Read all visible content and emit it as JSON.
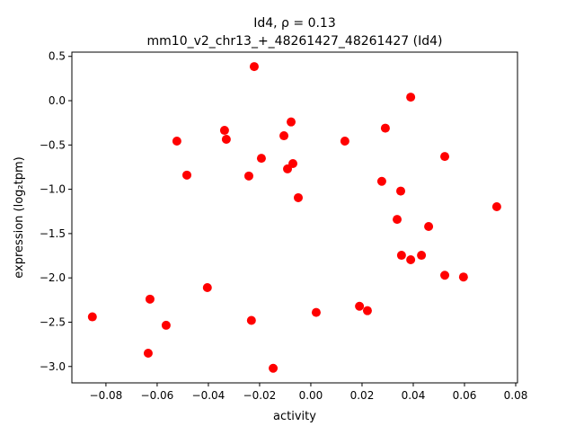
{
  "chart_data": {
    "type": "scatter",
    "title_line1": "Id4, ρ = 0.13",
    "title_line2": "mm10_v2_chr13_+_48261427_48261427 (Id4)",
    "xlabel": "activity",
    "ylabel": "expression (log₂tpm)",
    "xlim": [
      -0.0933,
      0.0807
    ],
    "ylim": [
      -3.185,
      0.548
    ],
    "xticks": [
      -0.08,
      -0.06,
      -0.04,
      -0.02,
      0.0,
      0.02,
      0.04,
      0.06,
      0.08
    ],
    "xtick_labels": [
      "−0.08",
      "−0.06",
      "−0.04",
      "−0.02",
      "0.00",
      "0.02",
      "0.04",
      "0.06",
      "0.08"
    ],
    "yticks": [
      0.5,
      0.0,
      -0.5,
      -1.0,
      -1.5,
      -2.0,
      -2.5,
      -3.0
    ],
    "ytick_labels": [
      "0.5",
      "0.0",
      "−0.5",
      "−1.0",
      "−1.5",
      "−2.0",
      "−2.5",
      "−3.0"
    ],
    "grid": false,
    "marker_color": "#ff0000",
    "points": [
      [
        -0.0221,
        0.385
      ],
      [
        0.039,
        0.04
      ],
      [
        -0.0077,
        -0.24
      ],
      [
        -0.0337,
        -0.335
      ],
      [
        0.0291,
        -0.31
      ],
      [
        -0.0523,
        -0.456
      ],
      [
        -0.033,
        -0.436
      ],
      [
        -0.0105,
        -0.396
      ],
      [
        0.0133,
        -0.456
      ],
      [
        0.0523,
        -0.63
      ],
      [
        -0.0193,
        -0.65
      ],
      [
        -0.007,
        -0.71
      ],
      [
        -0.0091,
        -0.77
      ],
      [
        -0.0484,
        -0.84
      ],
      [
        -0.0242,
        -0.85
      ],
      [
        0.0277,
        -0.91
      ],
      [
        0.0351,
        -1.02
      ],
      [
        -0.0049,
        -1.095
      ],
      [
        0.0726,
        -1.197
      ],
      [
        0.0337,
        -1.34
      ],
      [
        0.046,
        -1.42
      ],
      [
        0.0354,
        -1.745
      ],
      [
        0.0432,
        -1.745
      ],
      [
        0.039,
        -1.795
      ],
      [
        0.0523,
        -1.97
      ],
      [
        0.0596,
        -1.99
      ],
      [
        -0.0404,
        -2.11
      ],
      [
        -0.0628,
        -2.24
      ],
      [
        0.019,
        -2.32
      ],
      [
        0.0221,
        -2.37
      ],
      [
        0.0021,
        -2.39
      ],
      [
        -0.0853,
        -2.44
      ],
      [
        -0.0232,
        -2.48
      ],
      [
        -0.0565,
        -2.535
      ],
      [
        -0.0635,
        -2.85
      ],
      [
        -0.0147,
        -3.02
      ]
    ]
  }
}
